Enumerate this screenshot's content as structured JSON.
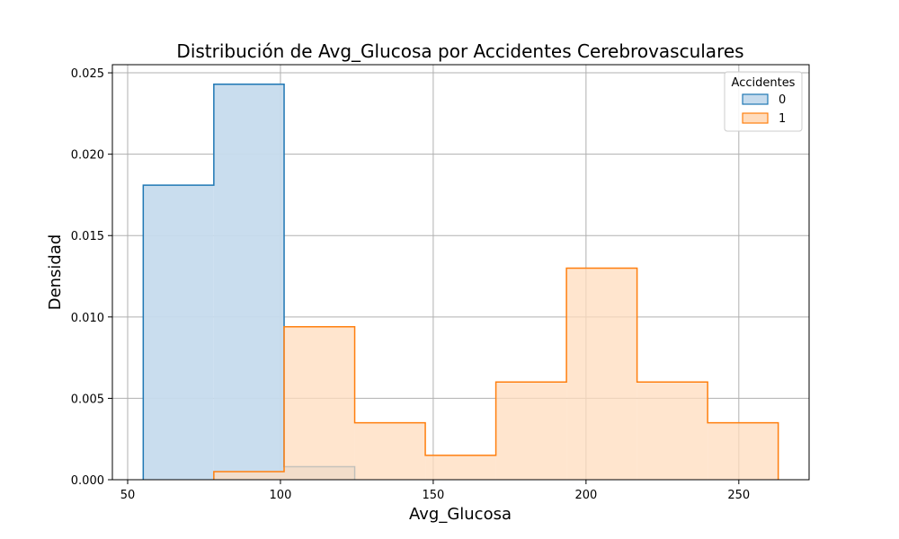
{
  "chart_data": {
    "type": "histogram",
    "title": "Distribución de Avg_Glucosa por Accidentes Cerebrovasculares",
    "xlabel": "Avg_Glucosa",
    "ylabel": "Densidad",
    "xlim": [
      45,
      273
    ],
    "ylim": [
      0,
      0.0255
    ],
    "xticks": [
      50,
      100,
      150,
      200,
      250
    ],
    "yticks": [
      0.0,
      0.005,
      0.01,
      0.015,
      0.02,
      0.025
    ],
    "grid": true,
    "legend": {
      "title": "Accidentes",
      "placement": "top-right"
    },
    "series": [
      {
        "name": "0",
        "color": "#1f77b4",
        "fill": "#c6dbed",
        "bins": [
          {
            "x0": 55.1,
            "x1": 78.2,
            "y": 0.0181
          },
          {
            "x0": 78.2,
            "x1": 101.2,
            "y": 0.0243
          },
          {
            "x0": 101.2,
            "x1": 124.3,
            "y": 0.0008
          }
        ]
      },
      {
        "name": "1",
        "color": "#ff7f0e",
        "fill": "#ffdcbd",
        "bins": [
          {
            "x0": 78.2,
            "x1": 101.2,
            "y": 0.0005
          },
          {
            "x0": 101.2,
            "x1": 124.3,
            "y": 0.0094
          },
          {
            "x0": 124.3,
            "x1": 147.4,
            "y": 0.0035
          },
          {
            "x0": 147.4,
            "x1": 170.5,
            "y": 0.0015
          },
          {
            "x0": 170.5,
            "x1": 193.6,
            "y": 0.006
          },
          {
            "x0": 193.6,
            "x1": 216.7,
            "y": 0.013
          },
          {
            "x0": 216.7,
            "x1": 239.8,
            "y": 0.006
          },
          {
            "x0": 239.8,
            "x1": 262.9,
            "y": 0.0035
          }
        ]
      }
    ]
  }
}
